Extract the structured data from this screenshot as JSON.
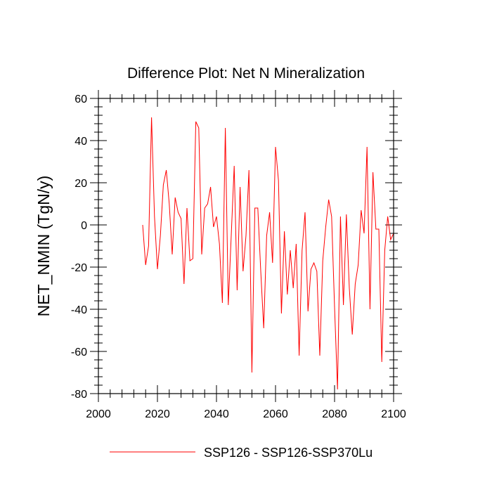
{
  "chart_data": {
    "type": "line",
    "title": "Difference Plot: Net N Mineralization",
    "xlabel": "",
    "ylabel": "NET_NMIN  (TgN/y)",
    "xlim": [
      2000,
      2100
    ],
    "ylim": [
      -80,
      60
    ],
    "x_major_ticks": [
      2000,
      2020,
      2040,
      2060,
      2080,
      2100
    ],
    "y_major_ticks": [
      -80,
      -60,
      -40,
      -20,
      0,
      20,
      40,
      60
    ],
    "x_tick_labels": [
      "2000",
      "2020",
      "2040",
      "2060",
      "2080",
      "2100"
    ],
    "y_tick_labels": [
      "-80",
      "-60",
      "-40",
      "-20",
      "0",
      "20",
      "40",
      "60"
    ],
    "grid": false,
    "legend_position": "bottom-center",
    "series": [
      {
        "name": "SSP126 - SSP126-SSP370Lu",
        "color": "#ff0000",
        "x": [
          2015,
          2016,
          2017,
          2018,
          2019,
          2020,
          2021,
          2022,
          2023,
          2024,
          2025,
          2026,
          2027,
          2028,
          2029,
          2030,
          2031,
          2032,
          2033,
          2034,
          2035,
          2036,
          2037,
          2038,
          2039,
          2040,
          2041,
          2042,
          2043,
          2044,
          2045,
          2046,
          2047,
          2048,
          2049,
          2050,
          2051,
          2052,
          2053,
          2054,
          2055,
          2056,
          2057,
          2058,
          2059,
          2060,
          2061,
          2062,
          2063,
          2064,
          2065,
          2066,
          2067,
          2068,
          2069,
          2070,
          2071,
          2072,
          2073,
          2074,
          2075,
          2076,
          2077,
          2078,
          2079,
          2080,
          2081,
          2082,
          2083,
          2084,
          2085,
          2086,
          2087,
          2088,
          2089,
          2090,
          2091,
          2092,
          2093,
          2094,
          2095,
          2096,
          2097,
          2098,
          2099,
          2100
        ],
        "values": [
          0,
          -19,
          -10,
          51,
          4,
          -21,
          -5,
          19,
          26,
          10,
          -14,
          13,
          6,
          3,
          -28,
          8,
          -17,
          -16,
          49,
          46,
          -14,
          8,
          10,
          18,
          -1,
          4,
          -9,
          -37,
          46,
          -38,
          -5,
          28,
          -31,
          18,
          -22,
          -5,
          26,
          -70,
          8,
          8,
          -22,
          -49,
          -5,
          6,
          -18,
          37,
          21,
          -42,
          -3,
          -33,
          -12,
          -30,
          -9,
          -62,
          -12,
          6,
          -41,
          -21,
          -18,
          -22,
          -62,
          -17,
          -1,
          12,
          4,
          -39,
          -78,
          4,
          -38,
          5,
          -30,
          -52,
          -28,
          -19,
          7,
          -4,
          37,
          -40,
          25,
          -2,
          -2,
          -65,
          -12,
          4,
          -7,
          -4
        ]
      }
    ]
  }
}
